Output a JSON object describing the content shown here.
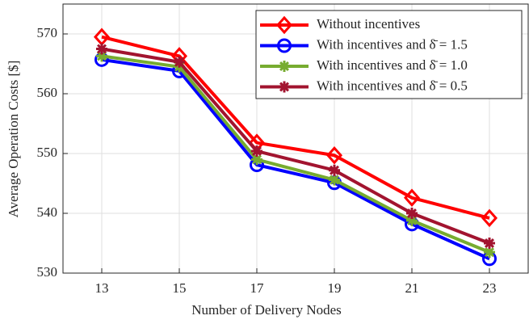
{
  "chart_data": {
    "type": "line",
    "xlabel": "Number of Delivery Nodes",
    "ylabel": "Average Operation Costs [$]",
    "x": [
      13,
      15,
      17,
      19,
      21,
      23
    ],
    "xlim": [
      12,
      24
    ],
    "xticks": [
      13,
      15,
      17,
      19,
      21,
      23
    ],
    "ylim": [
      530,
      575
    ],
    "yticks": [
      530,
      540,
      550,
      560,
      570
    ],
    "grid": true,
    "legend": "upper right",
    "series": [
      {
        "name": "Without incentives",
        "color": "#ff0000",
        "marker": "diamond",
        "values": [
          569.5,
          566.3,
          551.8,
          549.7,
          542.6,
          539.2
        ]
      },
      {
        "name": "With incentives and δ̄ = 1.5",
        "color": "#0000ff",
        "marker": "circle",
        "values": [
          565.7,
          563.8,
          548.1,
          545.1,
          538.2,
          532.4
        ]
      },
      {
        "name": "With incentives and δ̄ = 1.0",
        "color": "#77ac30",
        "marker": "asterisk",
        "values": [
          566.3,
          564.5,
          549.0,
          545.6,
          538.8,
          533.5
        ]
      },
      {
        "name": "With incentives and δ̄ = 0.5",
        "color": "#a2142f",
        "marker": "asterisk",
        "values": [
          567.5,
          565.3,
          550.4,
          547.2,
          540.0,
          535.0
        ]
      }
    ]
  }
}
